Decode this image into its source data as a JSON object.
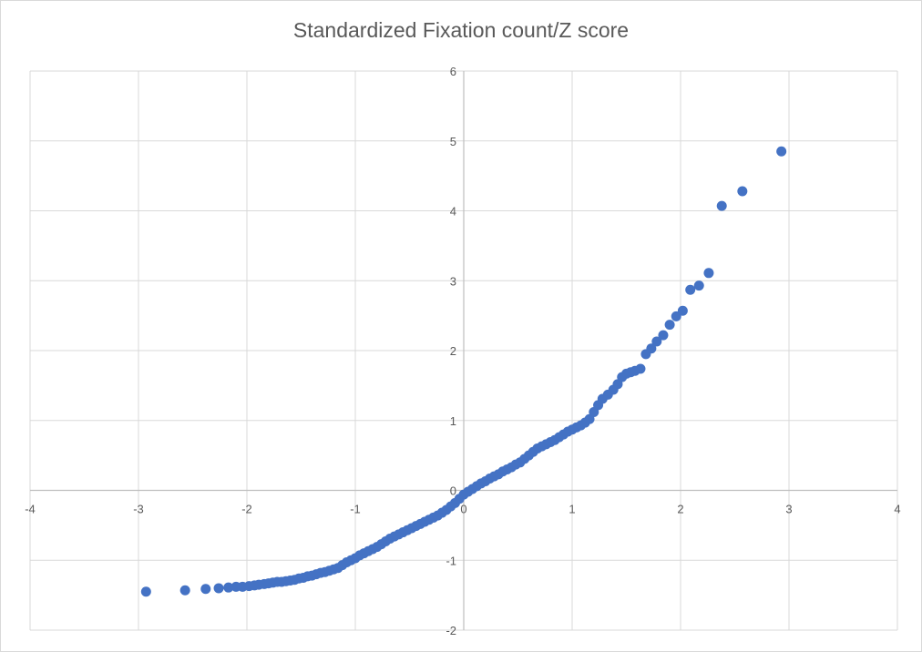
{
  "chart_data": {
    "type": "scatter",
    "title": "Standardized Fixation count/Z score",
    "xlabel": "",
    "ylabel": "",
    "xlim": [
      -4,
      4
    ],
    "ylim": [
      -2,
      6
    ],
    "x_ticks": [
      "-4",
      "-3",
      "-2",
      "-1",
      "0",
      "1",
      "2",
      "3",
      "4"
    ],
    "y_ticks": [
      "-2",
      "-1",
      "0",
      "1",
      "2",
      "3",
      "4",
      "5",
      "6"
    ],
    "grid": true,
    "legend": "none",
    "marker_color": "#4472c4",
    "series": [
      {
        "points": [
          [
            -2.93,
            -1.45
          ],
          [
            -2.57,
            -1.43
          ],
          [
            -2.38,
            -1.41
          ],
          [
            -2.26,
            -1.4
          ],
          [
            -2.17,
            -1.39
          ],
          [
            -2.1,
            -1.38
          ],
          [
            -2.04,
            -1.38
          ],
          [
            -1.98,
            -1.37
          ],
          [
            -1.93,
            -1.36
          ],
          [
            -1.89,
            -1.35
          ],
          [
            -1.84,
            -1.34
          ],
          [
            -1.8,
            -1.33
          ],
          [
            -1.76,
            -1.32
          ],
          [
            -1.72,
            -1.31
          ],
          [
            -1.68,
            -1.31
          ],
          [
            -1.64,
            -1.3
          ],
          [
            -1.6,
            -1.29
          ],
          [
            -1.56,
            -1.28
          ],
          [
            -1.52,
            -1.26
          ],
          [
            -1.48,
            -1.25
          ],
          [
            -1.44,
            -1.23
          ],
          [
            -1.4,
            -1.22
          ],
          [
            -1.36,
            -1.2
          ],
          [
            -1.32,
            -1.18
          ],
          [
            -1.28,
            -1.17
          ],
          [
            -1.24,
            -1.15
          ],
          [
            -1.2,
            -1.13
          ],
          [
            -1.16,
            -1.11
          ],
          [
            -1.12,
            -1.07
          ],
          [
            -1.08,
            -1.03
          ],
          [
            -1.04,
            -1.0
          ],
          [
            -1.0,
            -0.97
          ],
          [
            -0.96,
            -0.93
          ],
          [
            -0.92,
            -0.9
          ],
          [
            -0.88,
            -0.87
          ],
          [
            -0.84,
            -0.84
          ],
          [
            -0.8,
            -0.81
          ],
          [
            -0.76,
            -0.77
          ],
          [
            -0.72,
            -0.73
          ],
          [
            -0.68,
            -0.69
          ],
          [
            -0.64,
            -0.66
          ],
          [
            -0.6,
            -0.63
          ],
          [
            -0.56,
            -0.6
          ],
          [
            -0.52,
            -0.57
          ],
          [
            -0.48,
            -0.54
          ],
          [
            -0.44,
            -0.51
          ],
          [
            -0.4,
            -0.48
          ],
          [
            -0.36,
            -0.45
          ],
          [
            -0.32,
            -0.42
          ],
          [
            -0.28,
            -0.39
          ],
          [
            -0.24,
            -0.36
          ],
          [
            -0.2,
            -0.32
          ],
          [
            -0.16,
            -0.28
          ],
          [
            -0.12,
            -0.23
          ],
          [
            -0.08,
            -0.18
          ],
          [
            -0.04,
            -0.12
          ],
          [
            0.0,
            -0.06
          ],
          [
            0.04,
            -0.02
          ],
          [
            0.08,
            0.02
          ],
          [
            0.12,
            0.06
          ],
          [
            0.16,
            0.1
          ],
          [
            0.2,
            0.13
          ],
          [
            0.24,
            0.17
          ],
          [
            0.28,
            0.2
          ],
          [
            0.32,
            0.23
          ],
          [
            0.36,
            0.27
          ],
          [
            0.4,
            0.3
          ],
          [
            0.44,
            0.33
          ],
          [
            0.48,
            0.37
          ],
          [
            0.52,
            0.4
          ],
          [
            0.56,
            0.45
          ],
          [
            0.6,
            0.5
          ],
          [
            0.64,
            0.55
          ],
          [
            0.68,
            0.6
          ],
          [
            0.72,
            0.63
          ],
          [
            0.76,
            0.66
          ],
          [
            0.8,
            0.69
          ],
          [
            0.84,
            0.72
          ],
          [
            0.88,
            0.76
          ],
          [
            0.92,
            0.8
          ],
          [
            0.96,
            0.84
          ],
          [
            1.0,
            0.87
          ],
          [
            1.04,
            0.9
          ],
          [
            1.08,
            0.93
          ],
          [
            1.12,
            0.97
          ],
          [
            1.16,
            1.02
          ],
          [
            1.2,
            1.12
          ],
          [
            1.24,
            1.22
          ],
          [
            1.28,
            1.31
          ],
          [
            1.33,
            1.37
          ],
          [
            1.38,
            1.44
          ],
          [
            1.42,
            1.52
          ],
          [
            1.46,
            1.62
          ],
          [
            1.5,
            1.67
          ],
          [
            1.54,
            1.69
          ],
          [
            1.58,
            1.71
          ],
          [
            1.63,
            1.74
          ],
          [
            1.68,
            1.95
          ],
          [
            1.73,
            2.03
          ],
          [
            1.78,
            2.13
          ],
          [
            1.84,
            2.22
          ],
          [
            1.9,
            2.37
          ],
          [
            1.96,
            2.49
          ],
          [
            2.02,
            2.57
          ],
          [
            2.09,
            2.87
          ],
          [
            2.17,
            2.93
          ],
          [
            2.26,
            3.11
          ],
          [
            2.38,
            4.07
          ],
          [
            2.57,
            4.28
          ],
          [
            2.93,
            4.85
          ]
        ]
      }
    ]
  }
}
